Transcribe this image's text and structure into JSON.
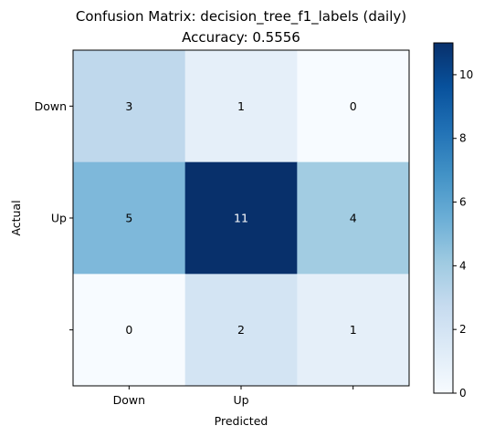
{
  "chart_data": {
    "type": "heatmap",
    "title": "Confusion Matrix: decision_tree_f1_labels (daily)",
    "subtitle": "Accuracy: 0.5556",
    "xlabel": "Predicted",
    "ylabel": "Actual",
    "x_tick_labels": [
      "Down",
      "Up",
      ""
    ],
    "y_tick_labels": [
      "Down",
      "Up",
      ""
    ],
    "matrix": [
      [
        3,
        1,
        0
      ],
      [
        5,
        11,
        4
      ],
      [
        0,
        2,
        1
      ]
    ],
    "colormap": "Blues",
    "vmin": 0,
    "vmax": 11,
    "colorbar_ticks": [
      0,
      2,
      4,
      6,
      8,
      10
    ],
    "grid": false
  }
}
